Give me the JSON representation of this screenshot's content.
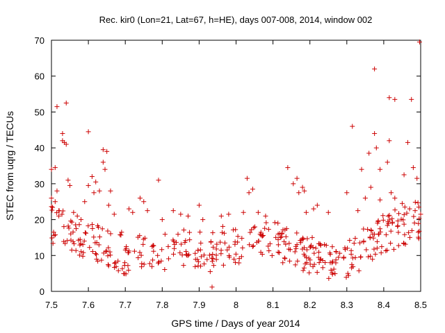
{
  "chart_data": {
    "type": "scatter",
    "title": "Rec. kir0 (Lon=21, Lat=67, h=HE), days 007-008, 2014, window 002",
    "xlabel": "GPS time / Days of year 2014",
    "ylabel": "STEC from uqrg / TECUs",
    "xlim": [
      7.5,
      8.5
    ],
    "ylim": [
      0,
      70
    ],
    "xticks": [
      "7.5",
      "7.6",
      "7.7",
      "7.8",
      "7.9",
      "8",
      "8.1",
      "8.2",
      "8.3",
      "8.4",
      "8.5"
    ],
    "yticks": [
      "0",
      "10",
      "20",
      "30",
      "40",
      "50",
      "60",
      "70"
    ],
    "marker": "+",
    "color": "#cc0000",
    "series": [
      {
        "name": "STEC",
        "points": [
          [
            7.5,
            34.0
          ],
          [
            7.5,
            26.0
          ],
          [
            7.51,
            34.5
          ],
          [
            7.51,
            25.0
          ],
          [
            7.515,
            51.5
          ],
          [
            7.515,
            28.0
          ],
          [
            7.52,
            22.5
          ],
          [
            7.52,
            21.0
          ],
          [
            7.53,
            44.0
          ],
          [
            7.53,
            42.0
          ],
          [
            7.535,
            41.5
          ],
          [
            7.54,
            52.5
          ],
          [
            7.54,
            41.0
          ],
          [
            7.545,
            31.0
          ],
          [
            7.55,
            29.5
          ],
          [
            7.56,
            22.0
          ],
          [
            7.57,
            21.0
          ],
          [
            7.58,
            20.0
          ],
          [
            7.59,
            25.0
          ],
          [
            7.6,
            44.5
          ],
          [
            7.6,
            29.5
          ],
          [
            7.61,
            32.0
          ],
          [
            7.615,
            27.5
          ],
          [
            7.62,
            30.5
          ],
          [
            7.63,
            28.0
          ],
          [
            7.64,
            39.5
          ],
          [
            7.64,
            36.0
          ],
          [
            7.645,
            34.0
          ],
          [
            7.65,
            39.0
          ],
          [
            7.655,
            24.0
          ],
          [
            7.66,
            28.0
          ],
          [
            7.67,
            21.5
          ],
          [
            7.69,
            16.5
          ],
          [
            7.71,
            23.0
          ],
          [
            7.72,
            22.0
          ],
          [
            7.74,
            26.0
          ],
          [
            7.75,
            25.0
          ],
          [
            7.76,
            22.5
          ],
          [
            7.79,
            31.0
          ],
          [
            7.8,
            20.0
          ],
          [
            7.83,
            22.5
          ],
          [
            7.85,
            21.5
          ],
          [
            7.87,
            21.0
          ],
          [
            7.9,
            24.0
          ],
          [
            7.91,
            20.0
          ],
          [
            7.93,
            5.5
          ],
          [
            7.935,
            1.2
          ],
          [
            7.96,
            21.0
          ],
          [
            7.98,
            21.5
          ],
          [
            8.02,
            22.0
          ],
          [
            8.03,
            31.5
          ],
          [
            8.035,
            27.5
          ],
          [
            8.045,
            28.5
          ],
          [
            8.06,
            22.0
          ],
          [
            8.08,
            21.0
          ],
          [
            8.14,
            34.5
          ],
          [
            8.155,
            30.0
          ],
          [
            8.165,
            31.5
          ],
          [
            8.17,
            27.5
          ],
          [
            8.18,
            29.0
          ],
          [
            8.185,
            28.0
          ],
          [
            8.19,
            22.0
          ],
          [
            8.21,
            23.0
          ],
          [
            8.22,
            24.0
          ],
          [
            8.25,
            22.0
          ],
          [
            8.3,
            27.5
          ],
          [
            8.315,
            46.0
          ],
          [
            8.33,
            22.5
          ],
          [
            8.34,
            34.0
          ],
          [
            8.35,
            26.0
          ],
          [
            8.36,
            38.5
          ],
          [
            8.365,
            29.0
          ],
          [
            8.375,
            62.0
          ],
          [
            8.375,
            44.0
          ],
          [
            8.38,
            40.0
          ],
          [
            8.39,
            34.0
          ],
          [
            8.39,
            25.5
          ],
          [
            8.41,
            36.0
          ],
          [
            8.415,
            54.0
          ],
          [
            8.415,
            42.0
          ],
          [
            8.42,
            27.5
          ],
          [
            8.43,
            53.5
          ],
          [
            8.43,
            26.0
          ],
          [
            8.45,
            24.5
          ],
          [
            8.455,
            32.5
          ],
          [
            8.465,
            41.5
          ],
          [
            8.47,
            23.0
          ],
          [
            8.475,
            53.5
          ],
          [
            8.48,
            34.5
          ],
          [
            8.485,
            22.5
          ],
          [
            8.49,
            31.5
          ],
          [
            8.495,
            23.5
          ],
          [
            8.497,
            69.5
          ],
          [
            8.5,
            21.5
          ]
        ]
      }
    ]
  }
}
